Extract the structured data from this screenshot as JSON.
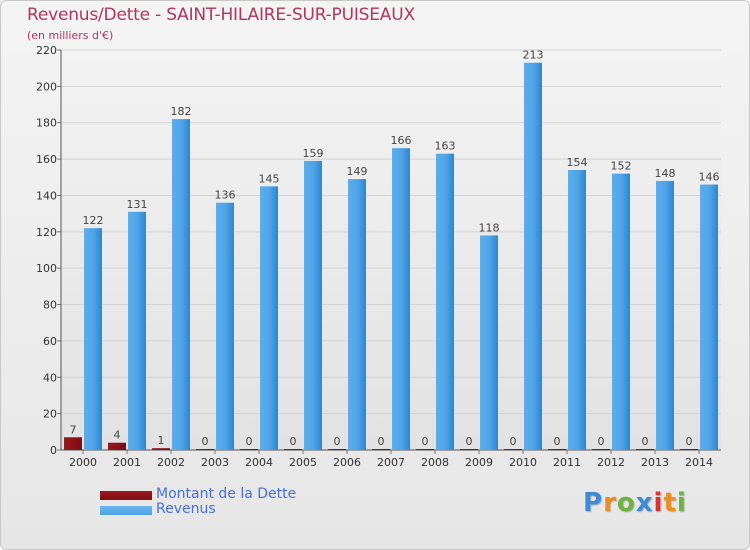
{
  "title": "Revenus/Dette - SAINT-HILAIRE-SUR-PUISEAUX",
  "subtitle": "(en milliers d'€)",
  "logo_text": "Proxiti",
  "colors": {
    "title": "#b5345b",
    "debt": "#7a0e12",
    "revenue": "#4ea3e6",
    "legend_text": "#4a6fd8"
  },
  "legend": [
    {
      "label": "Montant de la Dette",
      "color": "#7a0e12"
    },
    {
      "label": "Revenus",
      "color": "#4ea3e6"
    }
  ],
  "chart_data": {
    "type": "bar",
    "categories": [
      "2000",
      "2001",
      "2002",
      "2003",
      "2004",
      "2005",
      "2006",
      "2007",
      "2008",
      "2009",
      "2010",
      "2011",
      "2012",
      "2013",
      "2014"
    ],
    "series": [
      {
        "name": "Montant de la Dette",
        "values": [
          7,
          4,
          1,
          0,
          0,
          0,
          0,
          0,
          0,
          0,
          0,
          0,
          0,
          0,
          0
        ]
      },
      {
        "name": "Revenus",
        "values": [
          122,
          131,
          182,
          136,
          145,
          159,
          149,
          166,
          163,
          118,
          213,
          154,
          152,
          148,
          146
        ]
      }
    ],
    "title": "Revenus/Dette - SAINT-HILAIRE-SUR-PUISEAUX",
    "ylabel": "(en milliers d'€)",
    "ylim": [
      0,
      220
    ],
    "yticks": [
      0,
      20,
      40,
      60,
      80,
      100,
      120,
      140,
      160,
      180,
      200,
      220
    ],
    "grid": true,
    "legend_position": "bottom-left"
  }
}
